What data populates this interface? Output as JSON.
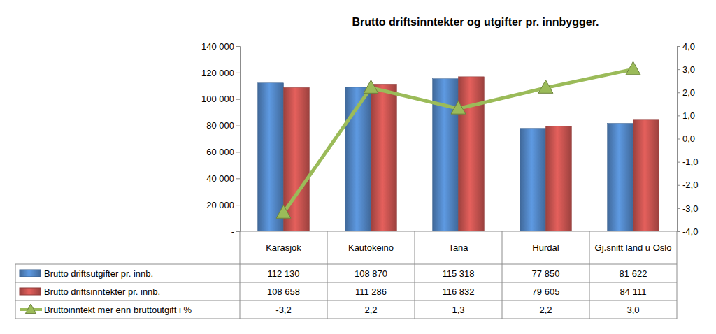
{
  "chart_data": {
    "type": "bar",
    "title": "Brutto driftsinntekter og utgifter pr. innbygger.",
    "categories": [
      "Karasjok",
      "Kautokeino",
      "Tana",
      "Hurdal",
      "Gj.snitt land u Oslo"
    ],
    "series": [
      {
        "name": "Brutto driftsutgifter pr. innb.",
        "color": "#4f81bd",
        "type": "bar",
        "values": [
          112130,
          108870,
          115318,
          77850,
          81622
        ],
        "value_labels": [
          "112 130",
          "108 870",
          "115 318",
          "77 850",
          "81 622"
        ]
      },
      {
        "name": "Brutto driftsinntekter pr. innb.",
        "color": "#c0504d",
        "type": "bar",
        "values": [
          108658,
          111286,
          116832,
          79605,
          84111
        ],
        "value_labels": [
          "108 658",
          "111 286",
          "116 832",
          "79 605",
          "84 111"
        ]
      },
      {
        "name": "Bruttoinntekt mer enn bruttoutgift i %",
        "color": "#9bbb59",
        "type": "line",
        "marker": "triangle",
        "axis": "y2",
        "values": [
          -3.2,
          2.2,
          1.3,
          2.2,
          3.0
        ],
        "value_labels": [
          "-3,2",
          "2,2",
          "1,3",
          "2,2",
          "3,0"
        ]
      }
    ],
    "ylim": [
      0,
      140000
    ],
    "yticks": [
      {
        "value": 0,
        "label": "-"
      },
      {
        "value": 20000,
        "label": "20 000"
      },
      {
        "value": 40000,
        "label": "40 000"
      },
      {
        "value": 60000,
        "label": "60 000"
      },
      {
        "value": 80000,
        "label": "80 000"
      },
      {
        "value": 100000,
        "label": "100 000"
      },
      {
        "value": 120000,
        "label": "120 000"
      },
      {
        "value": 140000,
        "label": "140 000"
      }
    ],
    "y2lim": [
      -4,
      4
    ],
    "y2ticks": [
      {
        "value": -4,
        "label": "-4,0"
      },
      {
        "value": -3,
        "label": "-3,0"
      },
      {
        "value": -2,
        "label": "-2,0"
      },
      {
        "value": -1,
        "label": "-1,0"
      },
      {
        "value": 0,
        "label": "0,0"
      },
      {
        "value": 1,
        "label": "1,0"
      },
      {
        "value": 2,
        "label": "2,0"
      },
      {
        "value": 3,
        "label": "3,0"
      },
      {
        "value": 4,
        "label": "4,0"
      }
    ],
    "grid": false
  }
}
